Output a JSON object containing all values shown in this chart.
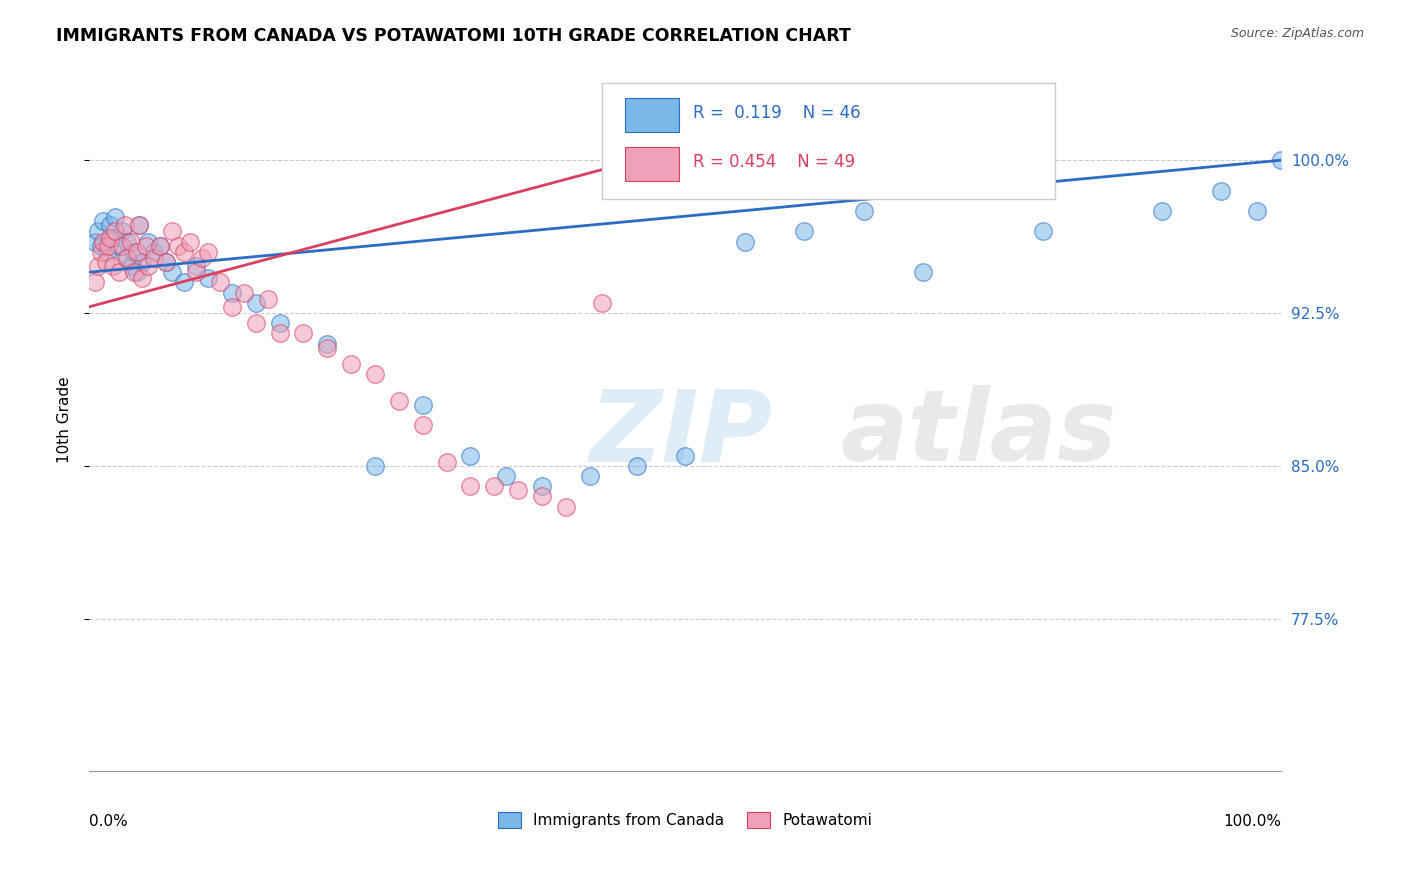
{
  "title": "IMMIGRANTS FROM CANADA VS POTAWATOMI 10TH GRADE CORRELATION CHART",
  "source_text": "Source: ZipAtlas.com",
  "ylabel": "10th Grade",
  "legend_blue_label": "Immigrants from Canada",
  "legend_pink_label": "Potawatomi",
  "R_blue": 0.119,
  "N_blue": 46,
  "R_pink": 0.454,
  "N_pink": 49,
  "blue_color": "#7ab8e8",
  "pink_color": "#f0a0b8",
  "blue_line_color": "#2b6cc4",
  "pink_line_color": "#d94060",
  "x_range": [
    0.0,
    1.0
  ],
  "y_range": [
    0.7,
    1.045
  ],
  "y_ticks": [
    0.775,
    0.85,
    0.925,
    1.0
  ],
  "y_tick_labels": [
    "77.5%",
    "85.0%",
    "92.5%",
    "100.0%"
  ],
  "grid_color": "#cccccc",
  "blue_line_x": [
    0.0,
    1.0
  ],
  "blue_line_y": [
    0.945,
    1.0
  ],
  "pink_line_x": [
    0.0,
    0.46
  ],
  "pink_line_y": [
    0.928,
    1.0
  ],
  "blue_x": [
    0.005,
    0.008,
    0.01,
    0.012,
    0.015,
    0.018,
    0.02,
    0.022,
    0.025,
    0.028,
    0.03,
    0.032,
    0.035,
    0.038,
    0.04,
    0.042,
    0.045,
    0.05,
    0.055,
    0.06,
    0.065,
    0.07,
    0.08,
    0.09,
    0.1,
    0.12,
    0.14,
    0.16,
    0.2,
    0.24,
    0.28,
    0.32,
    0.35,
    0.38,
    0.42,
    0.46,
    0.5,
    0.55,
    0.6,
    0.65,
    0.7,
    0.8,
    0.9,
    0.95,
    0.98,
    1.0
  ],
  "blue_y": [
    0.96,
    0.965,
    0.958,
    0.97,
    0.955,
    0.968,
    0.962,
    0.972,
    0.958,
    0.965,
    0.952,
    0.96,
    0.948,
    0.955,
    0.945,
    0.968,
    0.95,
    0.96,
    0.955,
    0.958,
    0.95,
    0.945,
    0.94,
    0.948,
    0.942,
    0.935,
    0.93,
    0.92,
    0.91,
    0.85,
    0.88,
    0.855,
    0.845,
    0.84,
    0.845,
    0.85,
    0.855,
    0.96,
    0.965,
    0.975,
    0.945,
    0.965,
    0.975,
    0.985,
    0.975,
    1.0
  ],
  "pink_x": [
    0.005,
    0.008,
    0.01,
    0.012,
    0.014,
    0.016,
    0.018,
    0.02,
    0.022,
    0.025,
    0.028,
    0.03,
    0.032,
    0.035,
    0.038,
    0.04,
    0.042,
    0.045,
    0.048,
    0.05,
    0.055,
    0.06,
    0.065,
    0.07,
    0.075,
    0.08,
    0.085,
    0.09,
    0.095,
    0.1,
    0.11,
    0.12,
    0.13,
    0.14,
    0.15,
    0.16,
    0.18,
    0.2,
    0.22,
    0.24,
    0.26,
    0.28,
    0.3,
    0.32,
    0.34,
    0.36,
    0.38,
    0.4,
    0.43
  ],
  "pink_y": [
    0.94,
    0.948,
    0.955,
    0.96,
    0.95,
    0.958,
    0.962,
    0.948,
    0.965,
    0.945,
    0.958,
    0.968,
    0.952,
    0.96,
    0.945,
    0.955,
    0.968,
    0.942,
    0.958,
    0.948,
    0.952,
    0.958,
    0.95,
    0.965,
    0.958,
    0.955,
    0.96,
    0.945,
    0.952,
    0.955,
    0.94,
    0.928,
    0.935,
    0.92,
    0.932,
    0.915,
    0.915,
    0.908,
    0.9,
    0.895,
    0.882,
    0.87,
    0.852,
    0.84,
    0.84,
    0.838,
    0.835,
    0.83,
    0.93
  ]
}
